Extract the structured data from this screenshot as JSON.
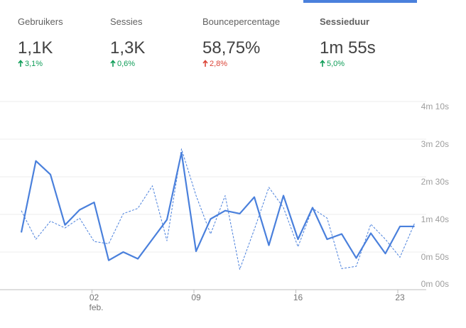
{
  "metrics": [
    {
      "label": "Gebruikers",
      "value": "1,1K",
      "change": "3,1%",
      "color": "#0f9d58"
    },
    {
      "label": "Sessies",
      "value": "1,3K",
      "change": "0,6%",
      "color": "#0f9d58"
    },
    {
      "label": "Bouncepercentage",
      "value": "58,75%",
      "change": "2,8%",
      "color": "#db4437"
    },
    {
      "label": "Sessieduur",
      "value": "1m 55s",
      "change": "5,0%",
      "color": "#0f9d58"
    }
  ],
  "chart_data": {
    "type": "line",
    "categories": [
      null,
      null,
      null,
      null,
      null,
      "02",
      null,
      null,
      null,
      null,
      null,
      null,
      "09",
      null,
      null,
      null,
      null,
      null,
      null,
      "16",
      null,
      null,
      null,
      null,
      null,
      null,
      "23",
      null
    ],
    "month_label": "feb.",
    "series": [
      {
        "color": "#4a80dc",
        "dashed": false,
        "values": [
          76,
          171,
          153,
          86,
          106,
          116,
          39,
          50,
          41,
          67,
          93,
          182,
          51,
          94,
          105,
          101,
          123,
          59,
          125,
          67,
          109,
          67,
          74,
          42,
          75,
          48,
          84,
          84
        ]
      },
      {
        "color": "#4a80dc",
        "dashed": true,
        "values": [
          105,
          67,
          91,
          82,
          95,
          64,
          61,
          101,
          108,
          138,
          65,
          187,
          125,
          74,
          125,
          27,
          80,
          136,
          109,
          57,
          108,
          95,
          28,
          31,
          87,
          67,
          43,
          88
        ]
      }
    ],
    "ylim": [
      0,
      250
    ],
    "yticks": [
      {
        "value": 0,
        "label": "0m 00s"
      },
      {
        "value": 50,
        "label": "0m 50s"
      },
      {
        "value": 100,
        "label": "1m 40s"
      },
      {
        "value": 150,
        "label": "2m 30s"
      },
      {
        "value": 200,
        "label": "3m 20s"
      },
      {
        "value": 250,
        "label": "4m 10s"
      }
    ],
    "grid": true
  }
}
